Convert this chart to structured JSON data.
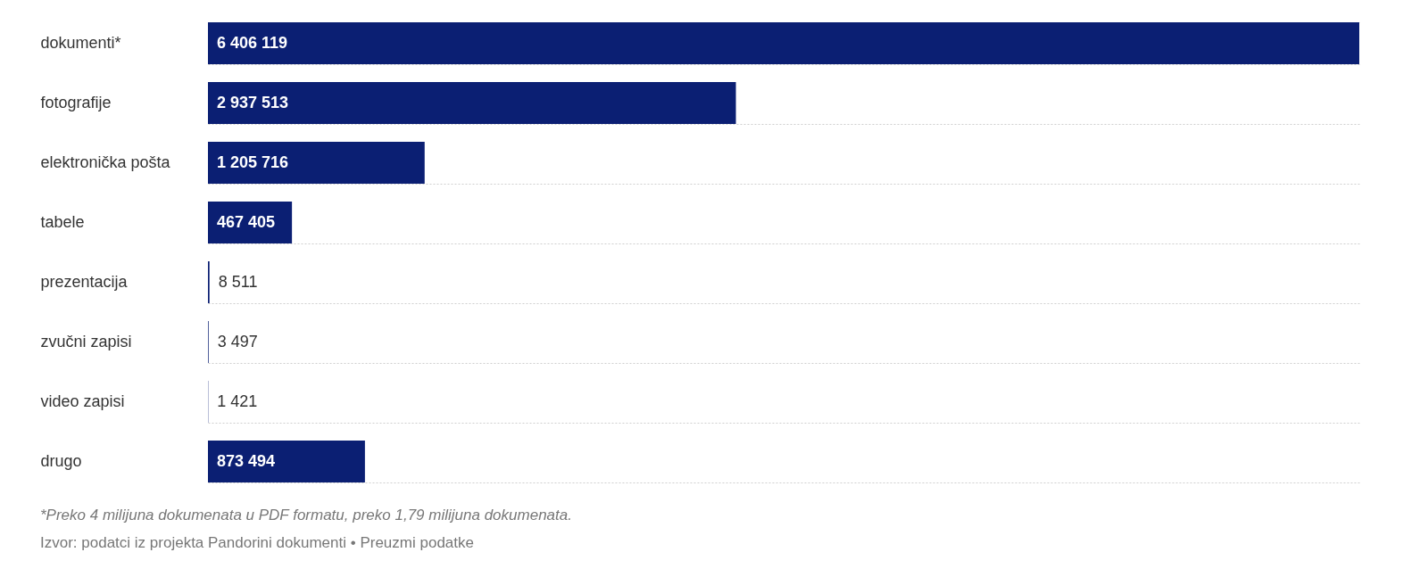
{
  "chart_data": {
    "type": "bar",
    "orientation": "horizontal",
    "categories": [
      "dokumenti*",
      "fotografije",
      "elektronička pošta",
      "tabele",
      "prezentacija",
      "zvučni zapisi",
      "video zapisi",
      "drugo"
    ],
    "values": [
      6406119,
      2937513,
      1205716,
      467405,
      8511,
      3497,
      1421,
      873494
    ],
    "color": "#0b1f73",
    "data_labels": true,
    "grid": true,
    "annotations": [
      "*Preko 4 milijuna dokumenata u PDF formatu, preko 1,79 milijuna dokumenata.",
      "Izvor: podatci iz projekta Pandorini dokumenti • Preuzmi podatke"
    ]
  }
}
